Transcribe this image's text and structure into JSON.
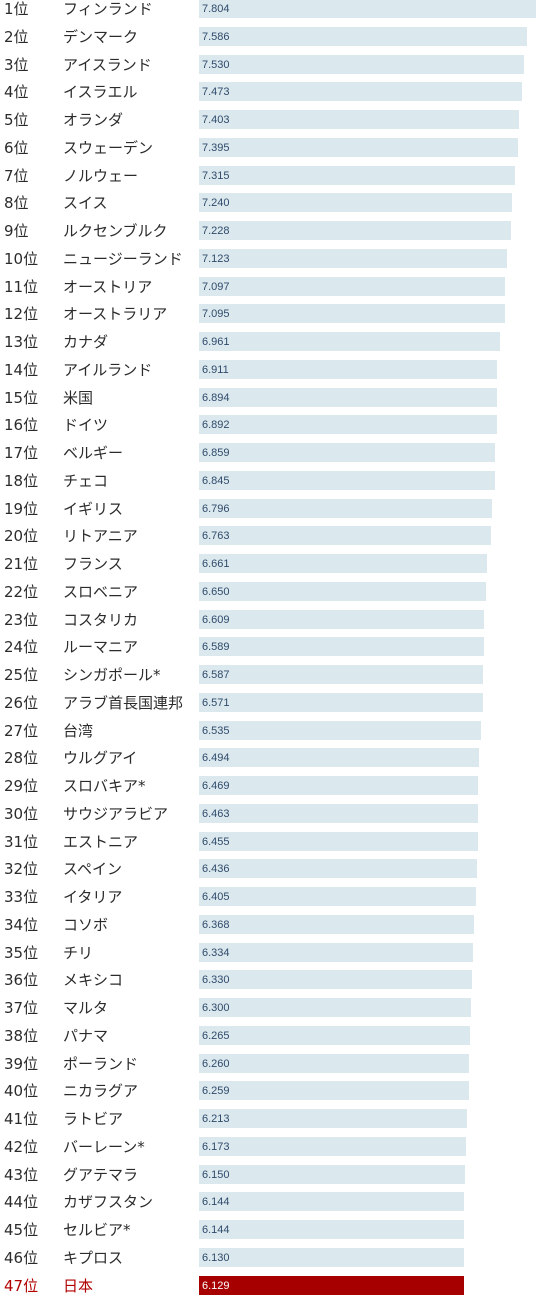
{
  "chart_data": {
    "type": "bar",
    "orientation": "horizontal",
    "colors": {
      "bar": "#dbe9ee",
      "highlight_bar": "#a60000",
      "highlight_text": "#b00000"
    },
    "highlight_index": 46,
    "value_format_decimals": 3,
    "xlim": [
      0,
      7.804
    ],
    "categories": [
      {
        "rank": "1位",
        "country": "フィンランド",
        "value": 7.804
      },
      {
        "rank": "2位",
        "country": "デンマーク",
        "value": 7.586
      },
      {
        "rank": "3位",
        "country": "アイスランド",
        "value": 7.53
      },
      {
        "rank": "4位",
        "country": "イスラエル",
        "value": 7.473
      },
      {
        "rank": "5位",
        "country": "オランダ",
        "value": 7.403
      },
      {
        "rank": "6位",
        "country": "スウェーデン",
        "value": 7.395
      },
      {
        "rank": "7位",
        "country": "ノルウェー",
        "value": 7.315
      },
      {
        "rank": "8位",
        "country": "スイス",
        "value": 7.24
      },
      {
        "rank": "9位",
        "country": "ルクセンブルク",
        "value": 7.228
      },
      {
        "rank": "10位",
        "country": "ニュージーランド",
        "value": 7.123
      },
      {
        "rank": "11位",
        "country": "オーストリア",
        "value": 7.097
      },
      {
        "rank": "12位",
        "country": "オーストラリア",
        "value": 7.095
      },
      {
        "rank": "13位",
        "country": "カナダ",
        "value": 6.961
      },
      {
        "rank": "14位",
        "country": "アイルランド",
        "value": 6.911
      },
      {
        "rank": "15位",
        "country": "米国",
        "value": 6.894
      },
      {
        "rank": "16位",
        "country": "ドイツ",
        "value": 6.892
      },
      {
        "rank": "17位",
        "country": "ベルギー",
        "value": 6.859
      },
      {
        "rank": "18位",
        "country": "チェコ",
        "value": 6.845
      },
      {
        "rank": "19位",
        "country": "イギリス",
        "value": 6.796
      },
      {
        "rank": "20位",
        "country": "リトアニア",
        "value": 6.763
      },
      {
        "rank": "21位",
        "country": "フランス",
        "value": 6.661
      },
      {
        "rank": "22位",
        "country": "スロベニア",
        "value": 6.65
      },
      {
        "rank": "23位",
        "country": "コスタリカ",
        "value": 6.609
      },
      {
        "rank": "24位",
        "country": "ルーマニア",
        "value": 6.589
      },
      {
        "rank": "25位",
        "country": "シンガポール*",
        "value": 6.587
      },
      {
        "rank": "26位",
        "country": "アラブ首長国連邦",
        "value": 6.571
      },
      {
        "rank": "27位",
        "country": "台湾",
        "value": 6.535
      },
      {
        "rank": "28位",
        "country": "ウルグアイ",
        "value": 6.494
      },
      {
        "rank": "29位",
        "country": "スロバキア*",
        "value": 6.469
      },
      {
        "rank": "30位",
        "country": "サウジアラビア",
        "value": 6.463
      },
      {
        "rank": "31位",
        "country": "エストニア",
        "value": 6.455
      },
      {
        "rank": "32位",
        "country": "スペイン",
        "value": 6.436
      },
      {
        "rank": "33位",
        "country": "イタリア",
        "value": 6.405
      },
      {
        "rank": "34位",
        "country": "コソボ",
        "value": 6.368
      },
      {
        "rank": "35位",
        "country": "チリ",
        "value": 6.334
      },
      {
        "rank": "36位",
        "country": "メキシコ",
        "value": 6.33
      },
      {
        "rank": "37位",
        "country": "マルタ",
        "value": 6.3
      },
      {
        "rank": "38位",
        "country": "パナマ",
        "value": 6.265
      },
      {
        "rank": "39位",
        "country": "ポーランド",
        "value": 6.26
      },
      {
        "rank": "40位",
        "country": "ニカラグア",
        "value": 6.259
      },
      {
        "rank": "41位",
        "country": "ラトビア",
        "value": 6.213
      },
      {
        "rank": "42位",
        "country": "バーレーン*",
        "value": 6.173
      },
      {
        "rank": "43位",
        "country": "グアテマラ",
        "value": 6.15
      },
      {
        "rank": "44位",
        "country": "カザフスタン",
        "value": 6.144
      },
      {
        "rank": "45位",
        "country": "セルビア*",
        "value": 6.144
      },
      {
        "rank": "46位",
        "country": "キプロス",
        "value": 6.13
      },
      {
        "rank": "47位",
        "country": "日本",
        "value": 6.129
      }
    ]
  }
}
